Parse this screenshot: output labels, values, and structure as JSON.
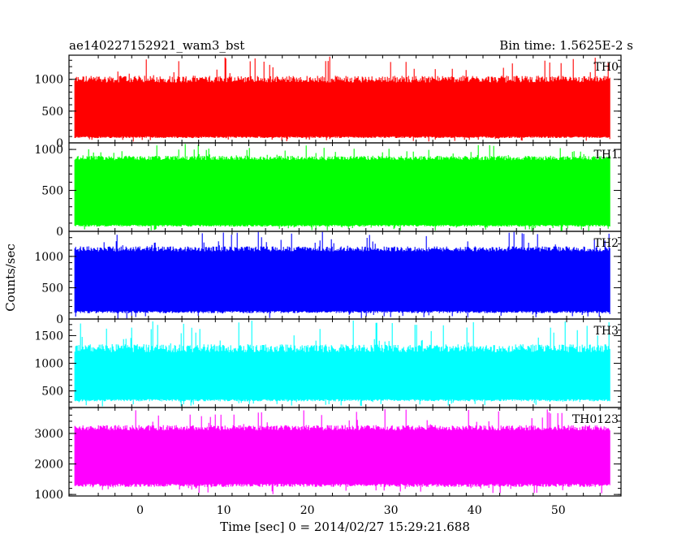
{
  "chart_data": {
    "type": "line",
    "title": "ae140227152921_wam3_bst",
    "subtitle": "Bin time: 1.5625E-2 s",
    "xlabel": "Time [sec] 0 = 2014/02/27 15:29:21.688",
    "ylabel": "Counts/sec",
    "xlim": [
      -8.5,
      57.5
    ],
    "x_ticks": [
      0,
      10,
      20,
      30,
      40,
      50
    ],
    "x_tick_labels": [
      "0",
      "10",
      "20",
      "30",
      "40",
      "50"
    ],
    "data_x_range": [
      -7.8,
      56.2
    ],
    "bin_time_sec": 0.015625,
    "panels": [
      {
        "name": "TH0",
        "color": "#ff0000",
        "ylim": [
          0,
          1380
        ],
        "y_ticks": [
          0,
          500,
          1000
        ],
        "y_tick_labels": [
          "0",
          "500",
          "1000"
        ],
        "low_typical": 100,
        "high_typical": 950,
        "low_min": 20,
        "high_max": 1380
      },
      {
        "name": "TH1",
        "color": "#00ff00",
        "ylim": [
          0,
          1080
        ],
        "y_ticks": [
          0,
          500,
          1000
        ],
        "y_tick_labels": [
          "0",
          "500",
          "1000"
        ],
        "low_typical": 80,
        "high_typical": 870,
        "low_min": 5,
        "high_max": 1080
      },
      {
        "name": "TH2",
        "color": "#0000ff",
        "ylim": [
          0,
          1400
        ],
        "y_ticks": [
          0,
          500,
          1000
        ],
        "y_tick_labels": [
          "0",
          "500",
          "1000"
        ],
        "low_typical": 130,
        "high_typical": 1080,
        "low_min": 5,
        "high_max": 1400
      },
      {
        "name": "TH3",
        "color": "#00ffff",
        "ylim": [
          200,
          1800
        ],
        "y_ticks": [
          500,
          1000,
          1500
        ],
        "y_tick_labels": [
          "500",
          "1000",
          "1500"
        ],
        "low_typical": 350,
        "high_typical": 1200,
        "low_min": 220,
        "high_max": 1780
      },
      {
        "name": "TH0123",
        "color": "#ff00ff",
        "ylim": [
          950,
          3850
        ],
        "y_ticks": [
          1000,
          2000,
          3000
        ],
        "y_tick_labels": [
          "1000",
          "2000",
          "3000"
        ],
        "low_typical": 1350,
        "high_typical": 3100,
        "low_min": 1000,
        "high_max": 3800
      }
    ],
    "grid": false,
    "legend": "none"
  }
}
